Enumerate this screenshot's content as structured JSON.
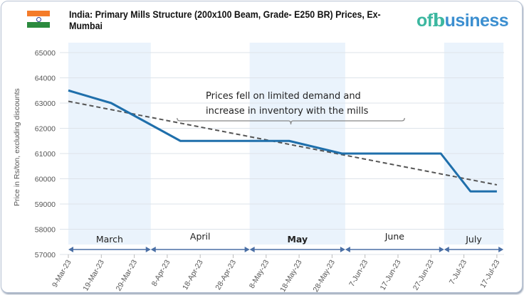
{
  "header": {
    "title": "India: Primary Mills Structure (200x100 Beam, Grade- E250 BR) Prices, Ex-Mumbai",
    "logo": {
      "part1": "of",
      "part2": "b",
      "part3": "usiness"
    },
    "flag": "india-flag"
  },
  "colors": {
    "series": "#1f6fab",
    "trend": "#555555",
    "band": "#eaf3fc",
    "logo": "#3cb7a0",
    "logo_blue": "#3c8fd0"
  },
  "chart_data": {
    "type": "line",
    "title": "India: Primary Mills Structure (200x100 Beam, Grade- E250 BR) Prices, Ex-Mumbai",
    "ylabel": "Price in Rs/ton, excluding discounts",
    "xlabel": "",
    "ylim": [
      57000,
      65000
    ],
    "xlim": [
      "2023-03-09",
      "2023-07-17"
    ],
    "grid": true,
    "yticks": [
      "57000",
      "58000",
      "59000",
      "60000",
      "61000",
      "62000",
      "63000",
      "64000",
      "65000"
    ],
    "xticks": [
      "9-Mar-23",
      "19-Mar-23",
      "29-Mar-23",
      "8-Apr-23",
      "18-Apr-23",
      "28-Apr-23",
      "8-May-23",
      "18-May-23",
      "28-May-23",
      "7-Jun-23",
      "17-Jun-23",
      "27-Jun-23",
      "7-Jul-23",
      "17-Jul-23"
    ],
    "series": [
      {
        "points": [
          {
            "x": "2023-03-09",
            "y": 63500
          },
          {
            "x": "2023-03-22",
            "y": 63000
          },
          {
            "x": "2023-04-12",
            "y": 61500
          },
          {
            "x": "2023-05-15",
            "y": 61500
          },
          {
            "x": "2023-05-31",
            "y": 61000
          },
          {
            "x": "2023-06-30",
            "y": 61000
          },
          {
            "x": "2023-07-09",
            "y": 59500
          },
          {
            "x": "2023-07-17",
            "y": 59500
          }
        ]
      }
    ],
    "trendline": {
      "style": "dashed",
      "points": [
        {
          "x": "2023-03-09",
          "y": 63070
        },
        {
          "x": "2023-07-17",
          "y": 59760
        }
      ]
    },
    "month_bands": [
      {
        "label": "March",
        "start": "2023-03-09",
        "end": "2023-04-03",
        "shaded": true
      },
      {
        "label": "April",
        "start": "2023-04-03",
        "end": "2023-05-03",
        "shaded": false
      },
      {
        "label": "May",
        "start": "2023-05-03",
        "end": "2023-06-01",
        "shaded": true
      },
      {
        "label": "June",
        "start": "2023-06-01",
        "end": "2023-07-01",
        "shaded": false
      },
      {
        "label": "July",
        "start": "2023-07-01",
        "end": "2023-07-19",
        "shaded": true
      }
    ],
    "annotation": {
      "line1": "Prices fell on limited demand and",
      "line2": "increase in inventory with the mills",
      "start": "2023-04-11",
      "end": "2023-06-19"
    }
  }
}
